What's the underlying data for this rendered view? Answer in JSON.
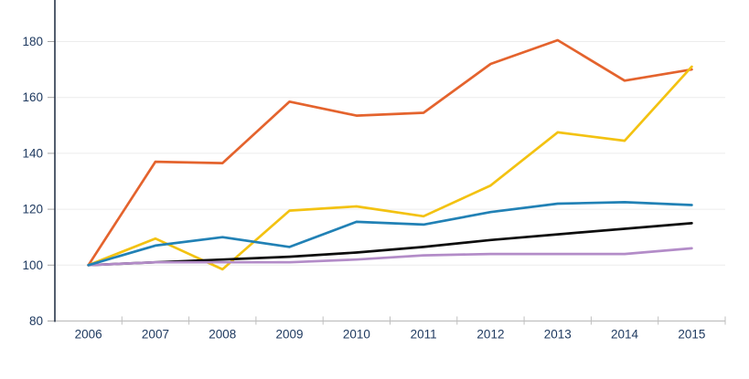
{
  "chart_data": {
    "type": "line",
    "title": "",
    "xlabel": "",
    "ylabel": "",
    "categories": [
      "2006",
      "2007",
      "2008",
      "2009",
      "2010",
      "2011",
      "2012",
      "2013",
      "2014",
      "2015"
    ],
    "series": [
      {
        "name": "orange-series",
        "color": "#E4632D",
        "values": [
          100,
          137,
          136.5,
          158.5,
          153.5,
          154.5,
          172,
          180.5,
          166,
          170
        ]
      },
      {
        "name": "yellow-series",
        "color": "#F3C211",
        "values": [
          100,
          109.5,
          98.5,
          119.5,
          121,
          117.5,
          128.5,
          147.5,
          144.5,
          171
        ]
      },
      {
        "name": "black-series",
        "color": "#0D0D0D",
        "values": [
          100,
          101,
          102,
          103,
          104.5,
          106.5,
          109,
          111,
          113,
          115
        ]
      },
      {
        "name": "purple-series",
        "color": "#B38CC8",
        "values": [
          100,
          101,
          101,
          101,
          102,
          103.5,
          104,
          104,
          104,
          106
        ]
      },
      {
        "name": "blue-series",
        "color": "#2181B5",
        "values": [
          100,
          107,
          110,
          106.5,
          115.5,
          114.5,
          119,
          122,
          122.5,
          121.5
        ]
      }
    ],
    "y_ticks": [
      80,
      100,
      120,
      140,
      160,
      180
    ],
    "ylim": [
      80,
      195
    ],
    "grid": "horizontal",
    "legend_position": "none",
    "colors": {
      "axis_label_text": "#1F3A60",
      "y_axis_line": "#28354A",
      "x_axis_line": "#BFBFBF",
      "gridline": "#ECECEC",
      "y_tick_mark": "#A6A6A6",
      "x_tick_mark": "#BFBFBF",
      "background": "#FFFFFF"
    }
  }
}
